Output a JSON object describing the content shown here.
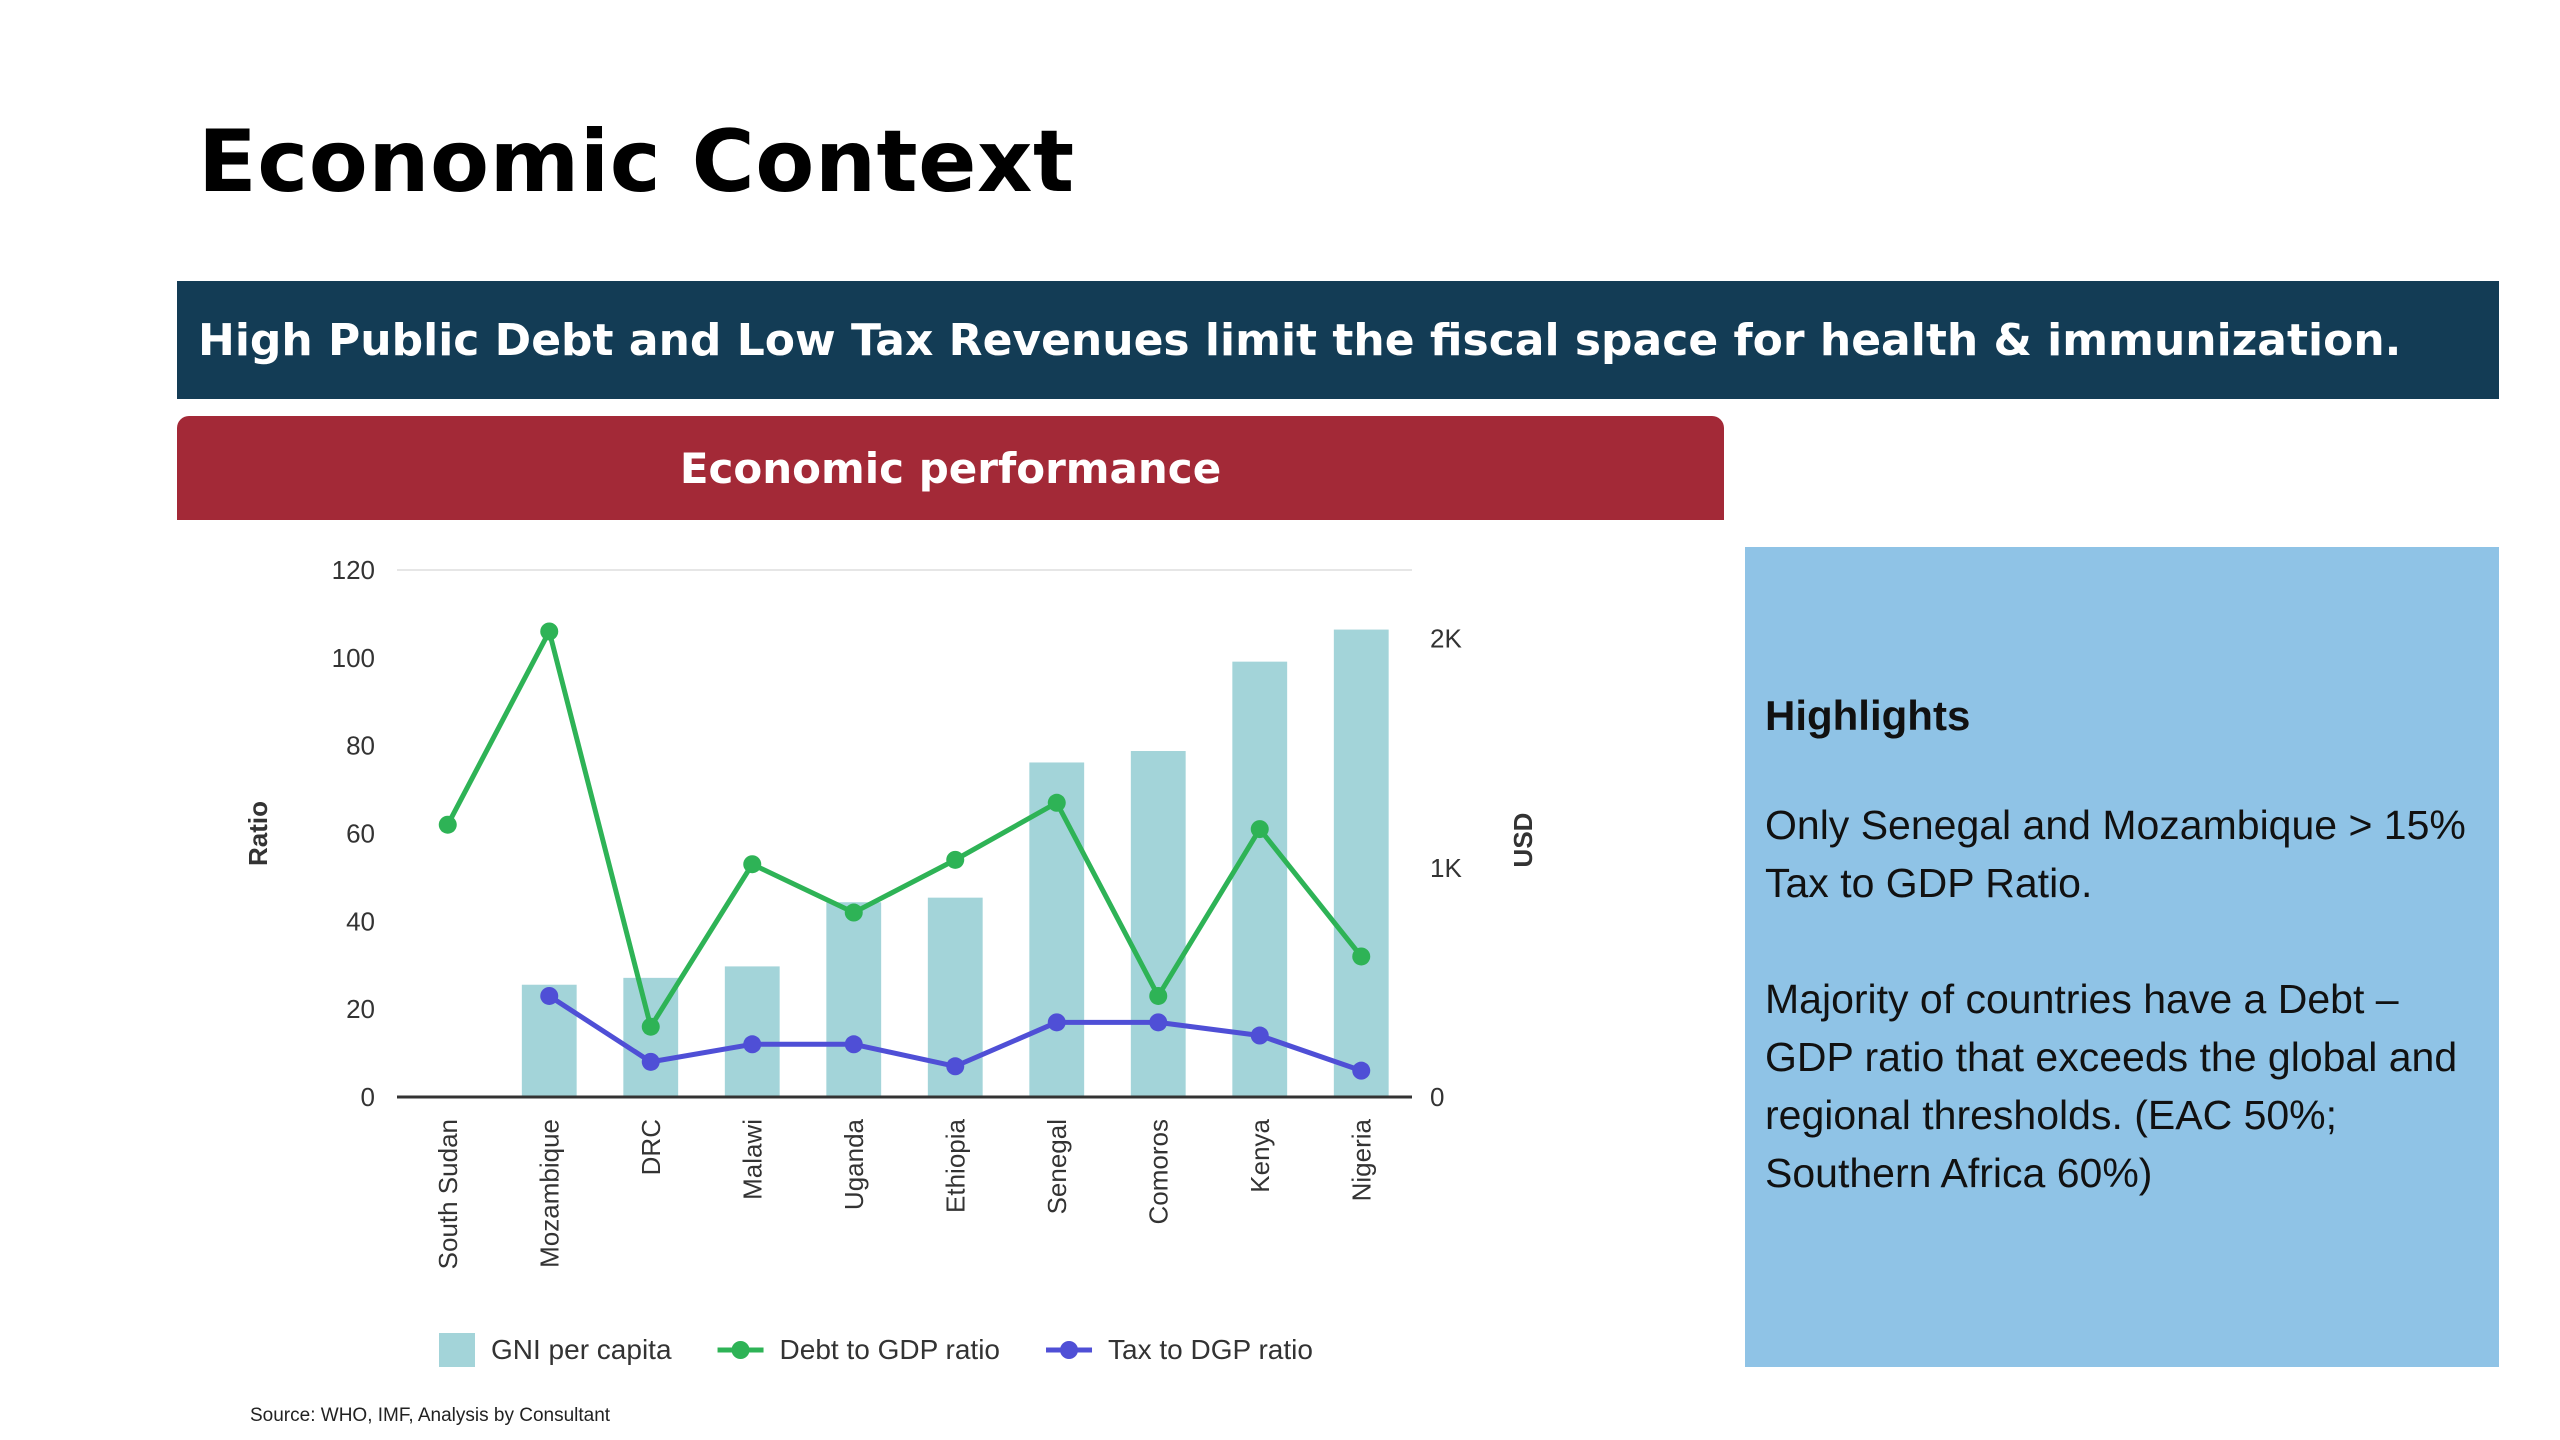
{
  "page": {
    "title": "Economic Context",
    "banner": "High Public Debt and Low Tax Revenues limit the fiscal space for health & immunization.",
    "section_header": "Economic performance",
    "source": "Source: WHO, IMF, Analysis by Consultant"
  },
  "highlights": {
    "title": "Highlights",
    "paragraphs": [
      "Only Senegal and Mozambique > 15% Tax to GDP Ratio.",
      "Majority of countries have a Debt – GDP ratio that exceeds the global and regional thresholds. (EAC 50%; Southern Africa 60%)"
    ]
  },
  "chart_data": {
    "type": "bar",
    "categories": [
      "South Sudan",
      "Mozambique",
      "DRC",
      "Malawi",
      "Uganda",
      "Ethiopia",
      "Senegal",
      "Comoros",
      "Kenya",
      "Nigeria"
    ],
    "ylabel": "Ratio",
    "y2label": "USD",
    "ylim": [
      0,
      120
    ],
    "yticks": [
      0,
      20,
      40,
      60,
      80,
      100,
      120
    ],
    "y2lim": [
      0,
      2300
    ],
    "y2ticks": [
      0,
      1000,
      2000
    ],
    "y2ticklabels": [
      "0",
      "1K",
      "2K"
    ],
    "grid": false,
    "legend_position": "bottom",
    "series": [
      {
        "name": "GNI per capita",
        "type": "bar",
        "axis": "right",
        "color": "#a3d4d9",
        "values": [
          0,
          490,
          520,
          570,
          850,
          870,
          1460,
          1510,
          1900,
          2040
        ]
      },
      {
        "name": "Debt to GDP ratio",
        "type": "line",
        "axis": "left",
        "color": "#2eb356",
        "values": [
          62,
          106,
          16,
          53,
          42,
          54,
          67,
          23,
          61,
          32
        ]
      },
      {
        "name": "Tax to DGP ratio",
        "type": "line",
        "axis": "left",
        "color": "#4f4fd6",
        "values": [
          null,
          23,
          8,
          12,
          12,
          7,
          17,
          17,
          14,
          6
        ]
      }
    ]
  }
}
